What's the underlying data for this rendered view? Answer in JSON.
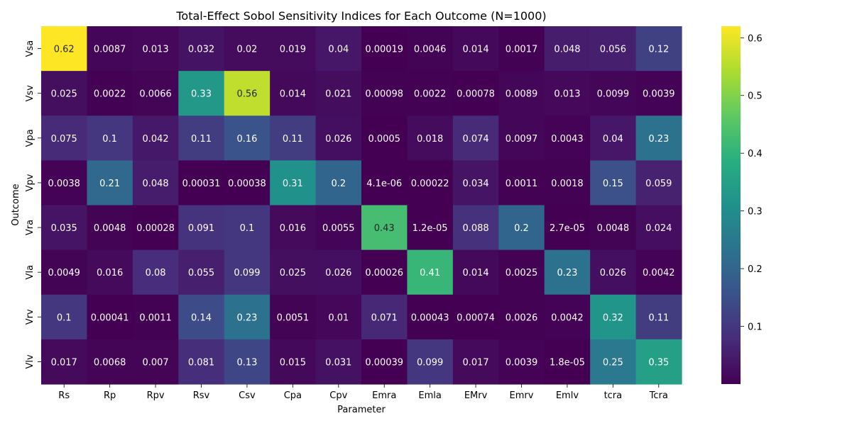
{
  "chart_data": {
    "type": "heatmap",
    "title": "Total-Effect Sobol Sensitivity Indices for Each Outcome (N=1000)",
    "xlabel": "Parameter",
    "ylabel": "Outcome",
    "x_categories": [
      "Rs",
      "Rp",
      "Rpv",
      "Rsv",
      "Csv",
      "Cpa",
      "Cpv",
      "Emra",
      "Emla",
      "EMrv",
      "Emrv",
      "Emlv",
      "tcra",
      "Tcra"
    ],
    "y_categories": [
      "Vsa",
      "Vsv",
      "Vpa",
      "Vpv",
      "Vra",
      "Vla",
      "Vrv",
      "Vlv"
    ],
    "values": [
      [
        0.62,
        0.0087,
        0.013,
        0.032,
        0.02,
        0.019,
        0.04,
        0.00019,
        0.0046,
        0.014,
        0.0017,
        0.048,
        0.056,
        0.12
      ],
      [
        0.025,
        0.0022,
        0.0066,
        0.33,
        0.56,
        0.014,
        0.021,
        0.00098,
        0.0022,
        0.00078,
        0.0089,
        0.013,
        0.0099,
        0.0039
      ],
      [
        0.075,
        0.1,
        0.042,
        0.11,
        0.16,
        0.11,
        0.026,
        0.0005,
        0.018,
        0.074,
        0.0097,
        0.0043,
        0.04,
        0.23
      ],
      [
        0.0038,
        0.21,
        0.048,
        0.00031,
        0.00038,
        0.31,
        0.2,
        4.1e-06,
        0.00022,
        0.034,
        0.0011,
        0.0018,
        0.15,
        0.059
      ],
      [
        0.035,
        0.0048,
        0.00028,
        0.091,
        0.1,
        0.016,
        0.0055,
        0.43,
        1.2e-05,
        0.088,
        0.2,
        2.7e-05,
        0.0048,
        0.024
      ],
      [
        0.0049,
        0.016,
        0.08,
        0.055,
        0.099,
        0.025,
        0.026,
        0.00026,
        0.41,
        0.014,
        0.0025,
        0.23,
        0.026,
        0.0042
      ],
      [
        0.1,
        0.00041,
        0.0011,
        0.14,
        0.23,
        0.0051,
        0.01,
        0.071,
        0.00043,
        0.00074,
        0.0026,
        0.0042,
        0.32,
        0.11
      ],
      [
        0.017,
        0.0068,
        0.007,
        0.081,
        0.13,
        0.015,
        0.031,
        0.00039,
        0.099,
        0.017,
        0.0039,
        1.8e-05,
        0.25,
        0.35
      ]
    ],
    "annotations": [
      [
        "0.62",
        "0.0087",
        "0.013",
        "0.032",
        "0.02",
        "0.019",
        "0.04",
        "0.00019",
        "0.0046",
        "0.014",
        "0.0017",
        "0.048",
        "0.056",
        "0.12"
      ],
      [
        "0.025",
        "0.0022",
        "0.0066",
        "0.33",
        "0.56",
        "0.014",
        "0.021",
        "0.00098",
        "0.0022",
        "0.00078",
        "0.0089",
        "0.013",
        "0.0099",
        "0.0039"
      ],
      [
        "0.075",
        "0.1",
        "0.042",
        "0.11",
        "0.16",
        "0.11",
        "0.026",
        "0.0005",
        "0.018",
        "0.074",
        "0.0097",
        "0.0043",
        "0.04",
        "0.23"
      ],
      [
        "0.0038",
        "0.21",
        "0.048",
        "0.00031",
        "0.00038",
        "0.31",
        "0.2",
        "4.1e-06",
        "0.00022",
        "0.034",
        "0.0011",
        "0.0018",
        "0.15",
        "0.059"
      ],
      [
        "0.035",
        "0.0048",
        "0.00028",
        "0.091",
        "0.1",
        "0.016",
        "0.0055",
        "0.43",
        "1.2e-05",
        "0.088",
        "0.2",
        "2.7e-05",
        "0.0048",
        "0.024"
      ],
      [
        "0.0049",
        "0.016",
        "0.08",
        "0.055",
        "0.099",
        "0.025",
        "0.026",
        "0.00026",
        "0.41",
        "0.014",
        "0.0025",
        "0.23",
        "0.026",
        "0.0042"
      ],
      [
        "0.1",
        "0.00041",
        "0.0011",
        "0.14",
        "0.23",
        "0.0051",
        "0.01",
        "0.071",
        "0.00043",
        "0.00074",
        "0.0026",
        "0.0042",
        "0.32",
        "0.11"
      ],
      [
        "0.017",
        "0.0068",
        "0.007",
        "0.081",
        "0.13",
        "0.015",
        "0.031",
        "0.00039",
        "0.099",
        "0.017",
        "0.0039",
        "1.8e-05",
        "0.25",
        "0.35"
      ]
    ],
    "colormap": "viridis",
    "vmin": 4e-06,
    "vmax": 0.62,
    "colorbar_ticks": [
      0.1,
      0.2,
      0.3,
      0.4,
      0.5,
      0.6
    ],
    "colorbar_tick_labels": [
      "0.1",
      "0.2",
      "0.3",
      "0.4",
      "0.5",
      "0.6"
    ],
    "grid": false,
    "legend": "colorbar-right"
  }
}
